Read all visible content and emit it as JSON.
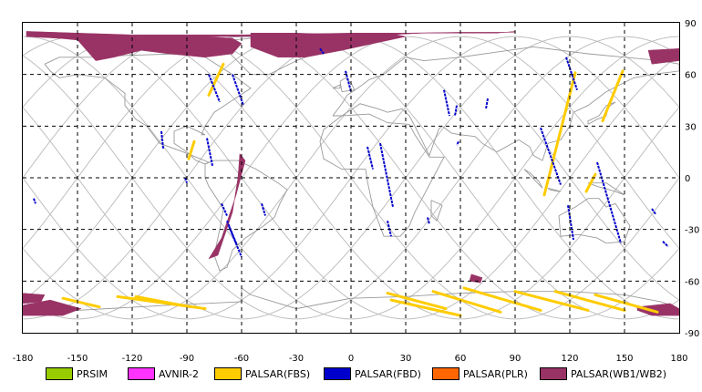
{
  "map": {
    "lon_ticks": [
      "-180",
      "-150",
      "-120",
      "-90",
      "-60",
      "-30",
      "0",
      "30",
      "60",
      "90",
      "120",
      "150",
      "180"
    ],
    "lat_ticks": [
      "90",
      "60",
      "30",
      "0",
      "-30",
      "-60",
      "-90"
    ],
    "lon_range": [
      -180,
      180
    ],
    "lat_range": [
      -90,
      90
    ],
    "grid": "dashed",
    "projection": "equirectangular"
  },
  "legend": [
    {
      "label": "PRSIM",
      "color": "#99cc00"
    },
    {
      "label": "AVNIR-2",
      "color": "#ff33ff"
    },
    {
      "label": "PALSAR(FBS)",
      "color": "#ffcc00"
    },
    {
      "label": "PALSAR(FBD)",
      "color": "#0000cc"
    },
    {
      "label": "PALSAR(PLR)",
      "color": "#ff6600"
    },
    {
      "label": "PALSAR(WB1/WB2)",
      "color": "#993366"
    }
  ],
  "colors": {
    "wb": "#993366",
    "fbs": "#ffcc00",
    "fbd": "#0000cc",
    "coast": "#9a9a9a",
    "orbit": "#bdbdbd",
    "grid": "#000000"
  },
  "observations": {
    "wb_regions": [
      {
        "name": "arctic-strip",
        "lon": [
          -178,
          -160,
          -120,
          -100,
          -80,
          -60,
          -30,
          0,
          20,
          40,
          60,
          80,
          90,
          90,
          60,
          30,
          0,
          -30,
          -60,
          -80,
          -100,
          -120,
          -140,
          -160,
          -178
        ],
        "lat": [
          82,
          81,
          82,
          82,
          82,
          82,
          83,
          83,
          83,
          84,
          84,
          84,
          85,
          84.5,
          84.5,
          84,
          84,
          83.5,
          83,
          83,
          83,
          82.5,
          82.5,
          82,
          82.5
        ]
      },
      {
        "name": "north-america-arctic",
        "lon": [
          -178,
          -150,
          -120,
          -100,
          -80,
          -65,
          -60,
          -65,
          -80,
          -100,
          -115,
          -130,
          -140,
          -150,
          -170,
          -178
        ],
        "lat": [
          85,
          84,
          83,
          83,
          82,
          81,
          78,
          72,
          70,
          72,
          74,
          70,
          68,
          80,
          82,
          82
        ]
      },
      {
        "name": "greenland-svalbard",
        "lon": [
          -55,
          -30,
          0,
          20,
          30,
          -5,
          -25,
          -40,
          -55
        ],
        "lat": [
          84,
          84,
          83,
          84,
          82,
          74,
          70,
          70,
          76
        ]
      },
      {
        "name": "chukotka-patch",
        "lon": [
          163,
          180,
          180,
          165
        ],
        "lat": [
          74,
          75,
          68,
          66
        ]
      },
      {
        "name": "south-america-strip",
        "lon": [
          -61,
          -58,
          -63,
          -71,
          -78,
          -73,
          -65,
          -62
        ],
        "lat": [
          14,
          10,
          -10,
          -35,
          -47,
          -45,
          -20,
          0
        ]
      },
      {
        "name": "south-atlantic-patch",
        "lon": [
          66,
          72,
          71,
          65
        ],
        "lat": [
          -56,
          -58,
          -61,
          -60
        ]
      },
      {
        "name": "antarctic-west-1",
        "lon": [
          -180,
          -168,
          -170,
          -180
        ],
        "lat": [
          -67,
          -68,
          -72,
          -73
        ]
      },
      {
        "name": "antarctic-west-2",
        "lon": [
          -180,
          -165,
          -148,
          -158,
          -180
        ],
        "lat": [
          -74,
          -71,
          -76,
          -80,
          -80
        ]
      },
      {
        "name": "antarctic-east",
        "lon": [
          157,
          175,
          180,
          180,
          165,
          157
        ],
        "lat": [
          -75,
          -73,
          -76,
          -80,
          -80,
          -77
        ]
      }
    ],
    "fbs_tracks": [
      {
        "name": "fbs-north-america",
        "from": [
          -70,
          66
        ],
        "to": [
          -78,
          48
        ]
      },
      {
        "name": "fbs-caribbean",
        "from": [
          -86,
          21
        ],
        "to": [
          -89,
          11
        ]
      },
      {
        "name": "fbs-asia-1",
        "from": [
          123,
          61
        ],
        "to": [
          106,
          -10
        ]
      },
      {
        "name": "fbs-asia-2",
        "from": [
          149,
          62
        ],
        "to": [
          138,
          33
        ]
      },
      {
        "name": "fbs-indonesia",
        "from": [
          134,
          2
        ],
        "to": [
          129,
          -8
        ]
      },
      {
        "name": "fbs-antarctic-1",
        "from": [
          -158,
          -70
        ],
        "to": [
          -138,
          -75
        ]
      },
      {
        "name": "fbs-antarctic-2",
        "from": [
          -128,
          -69
        ],
        "to": [
          -80,
          -76
        ]
      },
      {
        "name": "fbs-antarctic-3",
        "from": [
          -118,
          -69
        ],
        "to": [
          -88,
          -75
        ]
      },
      {
        "name": "fbs-antarctic-4",
        "from": [
          20,
          -67
        ],
        "to": [
          52,
          -76
        ]
      },
      {
        "name": "fbs-antarctic-5",
        "from": [
          22,
          -71
        ],
        "to": [
          60,
          -80
        ]
      },
      {
        "name": "fbs-antarctic-6",
        "from": [
          45,
          -66
        ],
        "to": [
          82,
          -78
        ]
      },
      {
        "name": "fbs-antarctic-7",
        "from": [
          62,
          -64
        ],
        "to": [
          104,
          -77
        ]
      },
      {
        "name": "fbs-antarctic-8",
        "from": [
          90,
          -66
        ],
        "to": [
          130,
          -77
        ]
      },
      {
        "name": "fbs-antarctic-9",
        "from": [
          112,
          -66
        ],
        "to": [
          150,
          -77
        ]
      },
      {
        "name": "fbs-antarctic-10",
        "from": [
          134,
          -68
        ],
        "to": [
          168,
          -78
        ]
      }
    ],
    "fbd_tracks": [
      {
        "name": "fbd-1",
        "from": [
          -78,
          60
        ],
        "to": [
          -72,
          44
        ]
      },
      {
        "name": "fbd-2",
        "from": [
          -65,
          60
        ],
        "to": [
          -59,
          42
        ]
      },
      {
        "name": "fbd-3",
        "from": [
          -104,
          27
        ],
        "to": [
          -103,
          17
        ]
      },
      {
        "name": "fbd-4",
        "from": [
          -79,
          23
        ],
        "to": [
          -76,
          7
        ]
      },
      {
        "name": "fbd-5",
        "from": [
          -91,
          0
        ],
        "to": [
          -90,
          -3
        ]
      },
      {
        "name": "fbd-6",
        "from": [
          -71,
          -15
        ],
        "to": [
          -68,
          -22
        ]
      },
      {
        "name": "fbd-7",
        "from": [
          -67,
          -28
        ],
        "to": [
          -60,
          -46
        ]
      },
      {
        "name": "fbd-8",
        "from": [
          -49,
          -15
        ],
        "to": [
          -47,
          -22
        ]
      },
      {
        "name": "fbd-9",
        "from": [
          -17,
          75
        ],
        "to": [
          -15,
          72
        ]
      },
      {
        "name": "fbd-10",
        "from": [
          -3,
          62
        ],
        "to": [
          0,
          50
        ]
      },
      {
        "name": "fbd-11",
        "from": [
          51,
          51
        ],
        "to": [
          54,
          36
        ]
      },
      {
        "name": "fbd-12",
        "from": [
          58,
          42
        ],
        "to": [
          57,
          36
        ]
      },
      {
        "name": "fbd-13",
        "from": [
          9,
          18
        ],
        "to": [
          12,
          5
        ]
      },
      {
        "name": "fbd-14",
        "from": [
          16,
          20
        ],
        "to": [
          23,
          -17
        ]
      },
      {
        "name": "fbd-15",
        "from": [
          20,
          -25
        ],
        "to": [
          22,
          -34
        ]
      },
      {
        "name": "fbd-16",
        "from": [
          42,
          -23
        ],
        "to": [
          43,
          -27
        ]
      },
      {
        "name": "fbd-17",
        "from": [
          59,
          21
        ],
        "to": [
          58,
          19
        ]
      },
      {
        "name": "fbd-18",
        "from": [
          75,
          46
        ],
        "to": [
          74,
          40
        ]
      },
      {
        "name": "fbd-19",
        "from": [
          118,
          70
        ],
        "to": [
          124,
          51
        ]
      },
      {
        "name": "fbd-20",
        "from": [
          104,
          29
        ],
        "to": [
          115,
          -4
        ]
      },
      {
        "name": "fbd-21",
        "from": [
          119,
          -16
        ],
        "to": [
          122,
          -36
        ]
      },
      {
        "name": "fbd-22",
        "from": [
          135,
          9
        ],
        "to": [
          148,
          -38
        ]
      },
      {
        "name": "fbd-23",
        "from": [
          165,
          -18
        ],
        "to": [
          167,
          -21
        ]
      },
      {
        "name": "fbd-24",
        "from": [
          171,
          -37
        ],
        "to": [
          174,
          -40
        ]
      },
      {
        "name": "fbd-25",
        "from": [
          -174,
          -12
        ],
        "to": [
          -173,
          -15
        ]
      },
      {
        "name": "fbd-26",
        "from": [
          -68,
          -25
        ],
        "to": [
          -63,
          -38
        ]
      }
    ]
  }
}
